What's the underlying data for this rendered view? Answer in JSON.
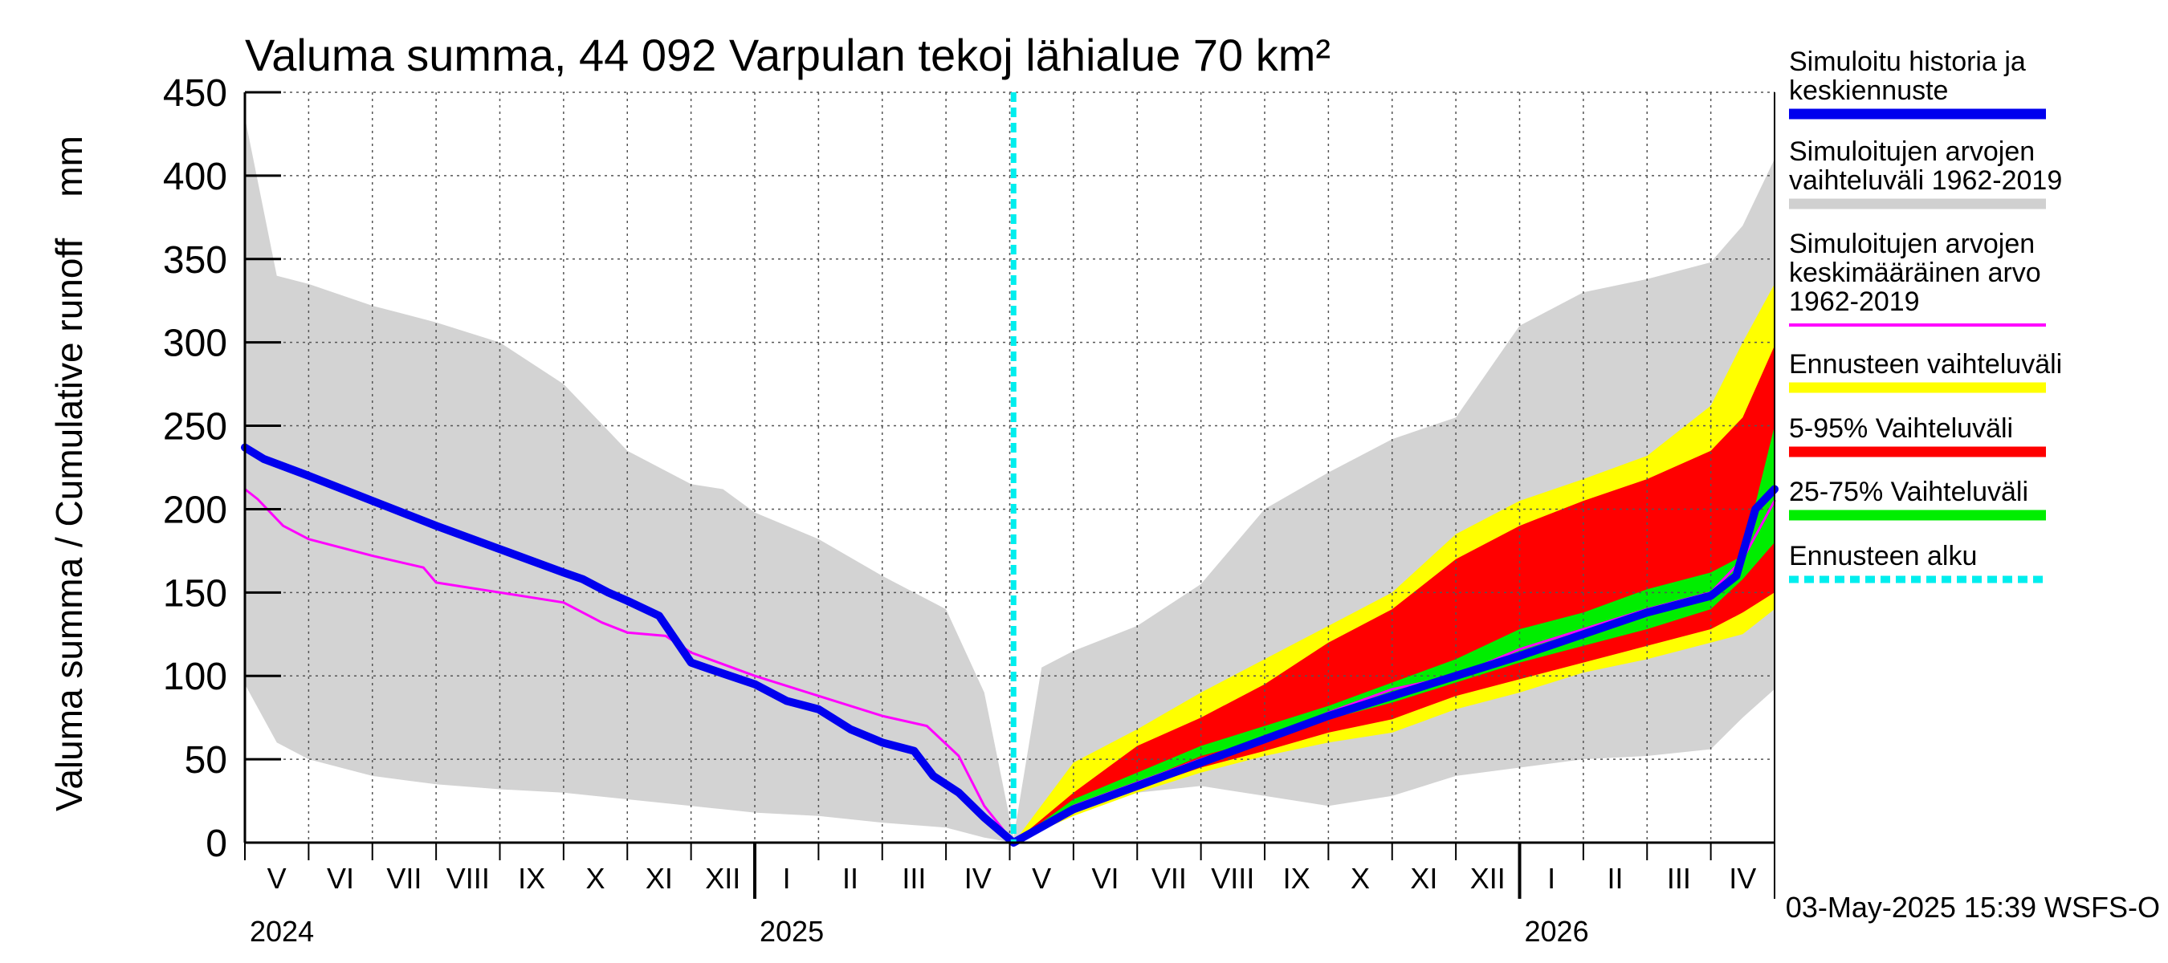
{
  "chart_data": {
    "type": "area",
    "title": "Valuma summa, 44 092 Varpulan tekoj lähialue 70 km²",
    "ylabel": "Valuma summa / Cumulative runoff    mm",
    "ylim": [
      0,
      450
    ],
    "yticks": [
      "0",
      "50",
      "100",
      "150",
      "200",
      "250",
      "300",
      "350",
      "400",
      "450"
    ],
    "ytick_values": [
      0,
      50,
      100,
      150,
      200,
      250,
      300,
      350,
      400,
      450
    ],
    "x_unit": "months since 2024-05-01",
    "xlim": [
      0,
      24
    ],
    "forecast_start": 12.06,
    "month_labels": [
      "V",
      "VI",
      "VII",
      "VIII",
      "IX",
      "X",
      "XI",
      "XII",
      "I",
      "II",
      "III",
      "IV",
      "V",
      "VI",
      "VII",
      "VIII",
      "IX",
      "X",
      "XI",
      "XII",
      "I",
      "II",
      "III",
      "IV"
    ],
    "year_labels": [
      {
        "label": "2024",
        "x": 0
      },
      {
        "label": "2025",
        "x": 8
      },
      {
        "label": "2026",
        "x": 20
      }
    ],
    "year_boundaries": [
      8,
      20
    ],
    "timestamp": "03-May-2025 15:39 WSFS-O",
    "legend": [
      {
        "label": "Simuloitu historia ja keskiennuste",
        "lines": [
          "Simuloitu historia ja",
          "keskiennuste"
        ],
        "color": "#0000ee",
        "style": "line"
      },
      {
        "label": "Simuloitujen arvojen vaihteluväli 1962-2019",
        "lines": [
          "Simuloitujen arvojen",
          "vaihteluväli 1962-2019"
        ],
        "color": "#d0d0d0",
        "style": "line"
      },
      {
        "label": "Simuloitujen arvojen keskimääräinen arvo 1962-2019",
        "lines": [
          "Simuloitujen arvojen",
          "keskimääräinen arvo",
          "   1962-2019"
        ],
        "color": "#ff00ff",
        "style": "thin"
      },
      {
        "label": "Ennusteen vaihteluväli",
        "lines": [
          "Ennusteen vaihteluväli"
        ],
        "color": "#ffff00",
        "style": "line"
      },
      {
        "label": "5-95% Vaihteluväli",
        "lines": [
          "5-95% Vaihteluväli"
        ],
        "color": "#ff0000",
        "style": "line"
      },
      {
        "label": "25-75% Vaihteluväli",
        "lines": [
          "25-75% Vaihteluväli"
        ],
        "color": "#00ee00",
        "style": "line"
      },
      {
        "label": "Ennusteen alku",
        "lines": [
          "Ennusteen alku"
        ],
        "color": "#00eeee",
        "style": "dashed"
      }
    ],
    "series": [
      {
        "name": "Simuloitujen arvojen vaihteluväli 1962-2019",
        "kind": "band",
        "color": "#d3d3d3",
        "x": [
          0,
          0.5,
          1,
          2,
          3,
          4,
          5,
          6,
          7,
          7.5,
          8,
          9,
          10,
          11,
          11.6,
          12.06,
          12.5,
          13,
          14,
          15,
          16,
          17,
          18,
          19,
          20,
          21,
          22,
          23,
          23.5,
          24
        ],
        "upper": [
          435,
          340,
          335,
          322,
          312,
          300,
          275,
          235,
          215,
          212,
          198,
          182,
          160,
          140,
          90,
          3,
          105,
          115,
          130,
          155,
          200,
          222,
          242,
          255,
          310,
          330,
          338,
          348,
          370,
          410
        ],
        "lower": [
          95,
          60,
          50,
          40,
          35,
          32,
          30,
          26,
          22,
          20,
          18,
          16,
          12,
          9,
          3,
          0,
          18,
          24,
          30,
          34,
          28,
          22,
          28,
          40,
          45,
          50,
          52,
          56,
          75,
          92
        ]
      },
      {
        "name": "Ennusteen vaihteluväli",
        "kind": "band",
        "color": "#ffff00",
        "x": [
          12.06,
          13,
          14,
          15,
          16,
          17,
          18,
          19,
          20,
          21,
          22,
          23,
          23.5,
          24
        ],
        "upper": [
          0,
          48,
          68,
          90,
          110,
          130,
          150,
          185,
          205,
          218,
          232,
          262,
          300,
          335
        ],
        "lower": [
          0,
          16,
          30,
          42,
          52,
          60,
          66,
          80,
          90,
          102,
          110,
          120,
          125,
          140
        ]
      },
      {
        "name": "5-95% Vaihteluväli",
        "kind": "band",
        "color": "#ff0000",
        "x": [
          12.06,
          13,
          14,
          15,
          16,
          17,
          18,
          19,
          20,
          21,
          22,
          23,
          23.5,
          24
        ],
        "upper": [
          0,
          30,
          58,
          75,
          95,
          120,
          140,
          170,
          190,
          205,
          218,
          235,
          255,
          298
        ],
        "lower": [
          0,
          18,
          32,
          45,
          55,
          66,
          74,
          88,
          98,
          108,
          118,
          128,
          138,
          150
        ]
      },
      {
        "name": "25-75% Vaihteluväli",
        "kind": "band",
        "color": "#00ee00",
        "x": [
          12.06,
          13,
          14,
          15,
          16,
          17,
          18,
          19,
          20,
          21,
          22,
          23,
          23.5,
          24
        ],
        "upper": [
          0,
          26,
          42,
          58,
          70,
          82,
          96,
          110,
          128,
          138,
          152,
          162,
          172,
          250
        ],
        "lower": [
          0,
          22,
          36,
          52,
          62,
          74,
          84,
          96,
          108,
          118,
          128,
          140,
          158,
          180
        ]
      },
      {
        "name": "Simuloitujen arvojen keskimääräinen arvo 1962-2019",
        "kind": "line",
        "color": "#ff00ff",
        "width": 3,
        "x": [
          0,
          0.2,
          0.6,
          1,
          2,
          2.8,
          3,
          4,
          5,
          5.6,
          6,
          6.6,
          7,
          8,
          9,
          10,
          10.7,
          11.2,
          11.6,
          12.06,
          13,
          14,
          15,
          16,
          17,
          18,
          19,
          20,
          21,
          22,
          23,
          23.5,
          24
        ],
        "y": [
          212,
          206,
          190,
          182,
          172,
          165,
          156,
          150,
          144,
          132,
          126,
          124,
          114,
          100,
          88,
          76,
          70,
          52,
          22,
          0,
          22,
          36,
          50,
          62,
          78,
          92,
          100,
          116,
          128,
          140,
          150,
          170,
          205
        ]
      },
      {
        "name": "Simuloitu historia ja keskiennuste",
        "kind": "line",
        "color": "#0000ee",
        "width": 10,
        "x": [
          0,
          0.3,
          1,
          2,
          3,
          4,
          5,
          5.3,
          5.7,
          6,
          6.5,
          7,
          7.3,
          8,
          8.5,
          9,
          9.5,
          10,
          10.5,
          10.8,
          11.2,
          11.6,
          12.06,
          13,
          14,
          15,
          16,
          17,
          18,
          19,
          20,
          21,
          22,
          23,
          23.4,
          23.7,
          24
        ],
        "y": [
          237,
          230,
          220,
          205,
          190,
          176,
          162,
          158,
          150,
          145,
          136,
          108,
          104,
          95,
          85,
          80,
          68,
          60,
          55,
          40,
          30,
          15,
          0,
          20,
          34,
          48,
          62,
          76,
          88,
          100,
          112,
          125,
          138,
          148,
          160,
          200,
          212
        ]
      }
    ]
  }
}
